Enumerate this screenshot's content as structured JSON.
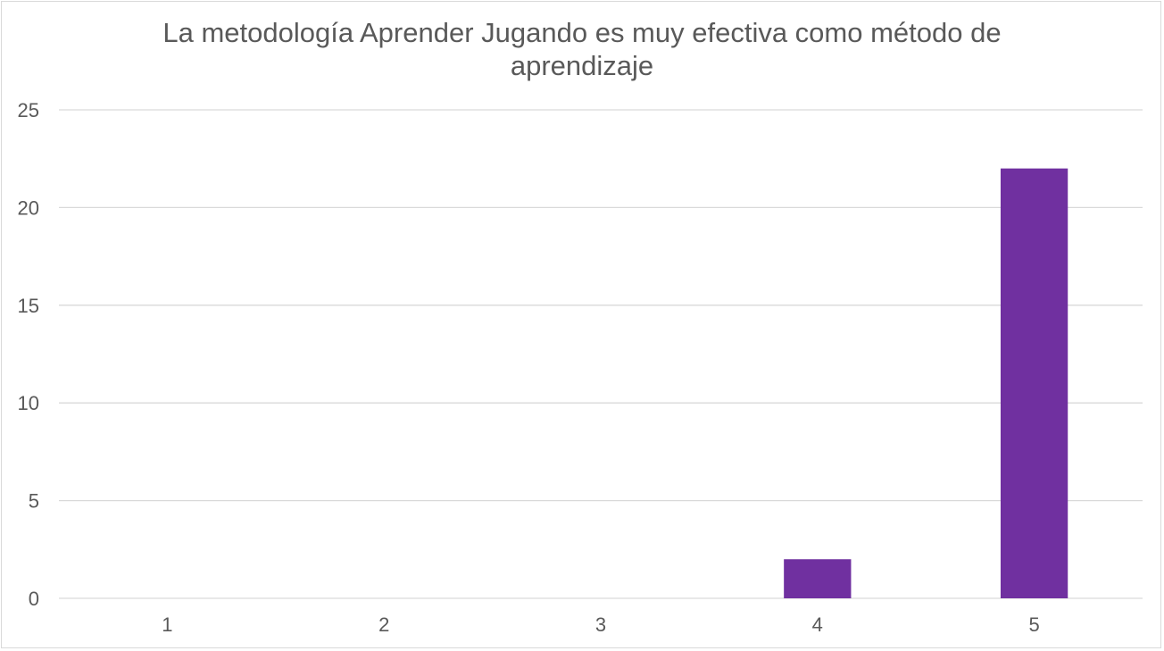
{
  "chart_data": {
    "type": "bar",
    "title": "La metodología Aprender Jugando es muy efectiva como método de aprendizaje",
    "xlabel": "",
    "ylabel": "",
    "categories": [
      "1",
      "2",
      "3",
      "4",
      "5"
    ],
    "values": [
      0,
      0,
      0,
      2,
      22
    ],
    "ylim": [
      0,
      25
    ],
    "yticks": [
      "0",
      "5",
      "10",
      "15",
      "20",
      "25"
    ],
    "grid": true,
    "legend": "none",
    "bar_color": "#7030a0",
    "gridline_color": "#d9d9d9",
    "text_color": "#595959"
  }
}
